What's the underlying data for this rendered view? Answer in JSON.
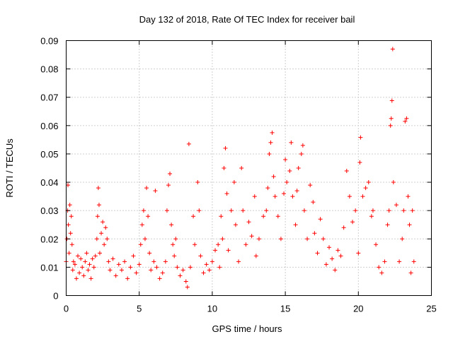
{
  "chart_data": {
    "type": "scatter",
    "title": "Day 132 of 2018, Rate Of TEC Index for receiver bail",
    "xlabel": "GPS time / hours",
    "ylabel": "ROTI / TECUs",
    "xlim": [
      0,
      25
    ],
    "ylim": [
      0,
      0.09
    ],
    "xticks": [
      0,
      5,
      10,
      15,
      20,
      25
    ],
    "xtick_labels": [
      "0",
      "5",
      "10",
      "15",
      "20",
      "25"
    ],
    "yticks": [
      0,
      0.01,
      0.02,
      0.03,
      0.04,
      0.05,
      0.06,
      0.07,
      0.08,
      0.09
    ],
    "ytick_labels": [
      "0",
      "0.01",
      "0.02",
      "0.03",
      "0.04",
      "0.05",
      "0.06",
      "0.07",
      "0.08",
      "0.09"
    ],
    "grid": true,
    "marker": "+",
    "color": "#ff0000",
    "series": [
      {
        "name": "ROTI",
        "points": [
          [
            0.0,
            0.012
          ],
          [
            0.05,
            0.02
          ],
          [
            0.1,
            0.03
          ],
          [
            0.12,
            0.039
          ],
          [
            0.15,
            0.025
          ],
          [
            0.2,
            0.015
          ],
          [
            0.25,
            0.032
          ],
          [
            0.3,
            0.022
          ],
          [
            0.35,
            0.028
          ],
          [
            0.4,
            0.018
          ],
          [
            0.45,
            0.009
          ],
          [
            0.5,
            0.012
          ],
          [
            0.6,
            0.011
          ],
          [
            0.7,
            0.006
          ],
          [
            0.8,
            0.014
          ],
          [
            0.9,
            0.008
          ],
          [
            1.0,
            0.013
          ],
          [
            1.1,
            0.01
          ],
          [
            1.2,
            0.007
          ],
          [
            1.3,
            0.012
          ],
          [
            1.4,
            0.015
          ],
          [
            1.5,
            0.009
          ],
          [
            1.6,
            0.011
          ],
          [
            1.7,
            0.006
          ],
          [
            1.8,
            0.013
          ],
          [
            1.9,
            0.01
          ],
          [
            2.0,
            0.014
          ],
          [
            2.1,
            0.02
          ],
          [
            2.15,
            0.028
          ],
          [
            2.2,
            0.038
          ],
          [
            2.25,
            0.032
          ],
          [
            2.3,
            0.015
          ],
          [
            2.4,
            0.022
          ],
          [
            2.5,
            0.026
          ],
          [
            2.6,
            0.018
          ],
          [
            2.7,
            0.024
          ],
          [
            2.8,
            0.02
          ],
          [
            2.9,
            0.012
          ],
          [
            3.0,
            0.009
          ],
          [
            3.2,
            0.013
          ],
          [
            3.4,
            0.007
          ],
          [
            3.6,
            0.011
          ],
          [
            3.8,
            0.009
          ],
          [
            4.0,
            0.012
          ],
          [
            4.2,
            0.006
          ],
          [
            4.4,
            0.01
          ],
          [
            4.6,
            0.014
          ],
          [
            4.8,
            0.008
          ],
          [
            5.0,
            0.011
          ],
          [
            5.1,
            0.018
          ],
          [
            5.2,
            0.025
          ],
          [
            5.3,
            0.03
          ],
          [
            5.4,
            0.02
          ],
          [
            5.5,
            0.038
          ],
          [
            5.6,
            0.028
          ],
          [
            5.7,
            0.015
          ],
          [
            5.8,
            0.009
          ],
          [
            6.0,
            0.012
          ],
          [
            6.1,
            0.037
          ],
          [
            6.2,
            0.01
          ],
          [
            6.4,
            0.006
          ],
          [
            6.6,
            0.008
          ],
          [
            6.8,
            0.012
          ],
          [
            6.9,
            0.03
          ],
          [
            7.0,
            0.039
          ],
          [
            7.1,
            0.043
          ],
          [
            7.2,
            0.025
          ],
          [
            7.3,
            0.018
          ],
          [
            7.4,
            0.014
          ],
          [
            7.5,
            0.02
          ],
          [
            7.6,
            0.01
          ],
          [
            7.8,
            0.007
          ],
          [
            8.0,
            0.009
          ],
          [
            8.2,
            0.005
          ],
          [
            8.3,
            0.003
          ],
          [
            8.4,
            0.0535
          ],
          [
            8.5,
            0.01
          ],
          [
            8.7,
            0.028
          ],
          [
            8.8,
            0.018
          ],
          [
            9.0,
            0.04
          ],
          [
            9.1,
            0.03
          ],
          [
            9.2,
            0.014
          ],
          [
            9.4,
            0.008
          ],
          [
            9.6,
            0.011
          ],
          [
            9.8,
            0.009
          ],
          [
            10.0,
            0.012
          ],
          [
            10.2,
            0.016
          ],
          [
            10.4,
            0.018
          ],
          [
            10.5,
            0.01
          ],
          [
            10.6,
            0.028
          ],
          [
            10.7,
            0.02
          ],
          [
            10.8,
            0.045
          ],
          [
            10.9,
            0.052
          ],
          [
            11.0,
            0.036
          ],
          [
            11.1,
            0.016
          ],
          [
            11.3,
            0.03
          ],
          [
            11.5,
            0.04
          ],
          [
            11.6,
            0.025
          ],
          [
            11.8,
            0.012
          ],
          [
            12.0,
            0.045
          ],
          [
            12.1,
            0.03
          ],
          [
            12.3,
            0.018
          ],
          [
            12.5,
            0.026
          ],
          [
            12.7,
            0.021
          ],
          [
            12.9,
            0.035
          ],
          [
            13.0,
            0.014
          ],
          [
            13.2,
            0.02
          ],
          [
            13.5,
            0.028
          ],
          [
            13.7,
            0.03
          ],
          [
            13.8,
            0.038
          ],
          [
            13.9,
            0.05
          ],
          [
            14.0,
            0.054
          ],
          [
            14.1,
            0.0575
          ],
          [
            14.2,
            0.042
          ],
          [
            14.3,
            0.035
          ],
          [
            14.5,
            0.028
          ],
          [
            14.7,
            0.02
          ],
          [
            14.9,
            0.036
          ],
          [
            15.0,
            0.048
          ],
          [
            15.1,
            0.04
          ],
          [
            15.3,
            0.044
          ],
          [
            15.4,
            0.054
          ],
          [
            15.5,
            0.035
          ],
          [
            15.7,
            0.025
          ],
          [
            15.8,
            0.037
          ],
          [
            15.9,
            0.045
          ],
          [
            16.1,
            0.05
          ],
          [
            16.2,
            0.053
          ],
          [
            16.3,
            0.03
          ],
          [
            16.5,
            0.02
          ],
          [
            16.7,
            0.039
          ],
          [
            16.9,
            0.033
          ],
          [
            17.0,
            0.022
          ],
          [
            17.2,
            0.015
          ],
          [
            17.4,
            0.027
          ],
          [
            17.6,
            0.02
          ],
          [
            17.8,
            0.011
          ],
          [
            18.0,
            0.017
          ],
          [
            18.2,
            0.013
          ],
          [
            18.4,
            0.009
          ],
          [
            18.6,
            0.016
          ],
          [
            18.8,
            0.014
          ],
          [
            19.0,
            0.024
          ],
          [
            19.2,
            0.044
          ],
          [
            19.4,
            0.035
          ],
          [
            19.6,
            0.026
          ],
          [
            19.8,
            0.03
          ],
          [
            20.0,
            0.015
          ],
          [
            20.1,
            0.047
          ],
          [
            20.15,
            0.0558
          ],
          [
            20.3,
            0.035
          ],
          [
            20.5,
            0.038
          ],
          [
            20.7,
            0.04
          ],
          [
            20.9,
            0.028
          ],
          [
            21.0,
            0.03
          ],
          [
            21.2,
            0.018
          ],
          [
            21.4,
            0.01
          ],
          [
            21.6,
            0.008
          ],
          [
            21.8,
            0.012
          ],
          [
            22.0,
            0.025
          ],
          [
            22.1,
            0.03
          ],
          [
            22.2,
            0.06
          ],
          [
            22.25,
            0.0625
          ],
          [
            22.3,
            0.0688
          ],
          [
            22.35,
            0.087
          ],
          [
            22.4,
            0.04
          ],
          [
            22.6,
            0.032
          ],
          [
            22.8,
            0.012
          ],
          [
            23.0,
            0.02
          ],
          [
            23.1,
            0.03
          ],
          [
            23.2,
            0.0615
          ],
          [
            23.3,
            0.0625
          ],
          [
            23.4,
            0.035
          ],
          [
            23.5,
            0.025
          ],
          [
            23.6,
            0.008
          ],
          [
            23.7,
            0.03
          ],
          [
            23.8,
            0.012
          ]
        ]
      }
    ]
  }
}
